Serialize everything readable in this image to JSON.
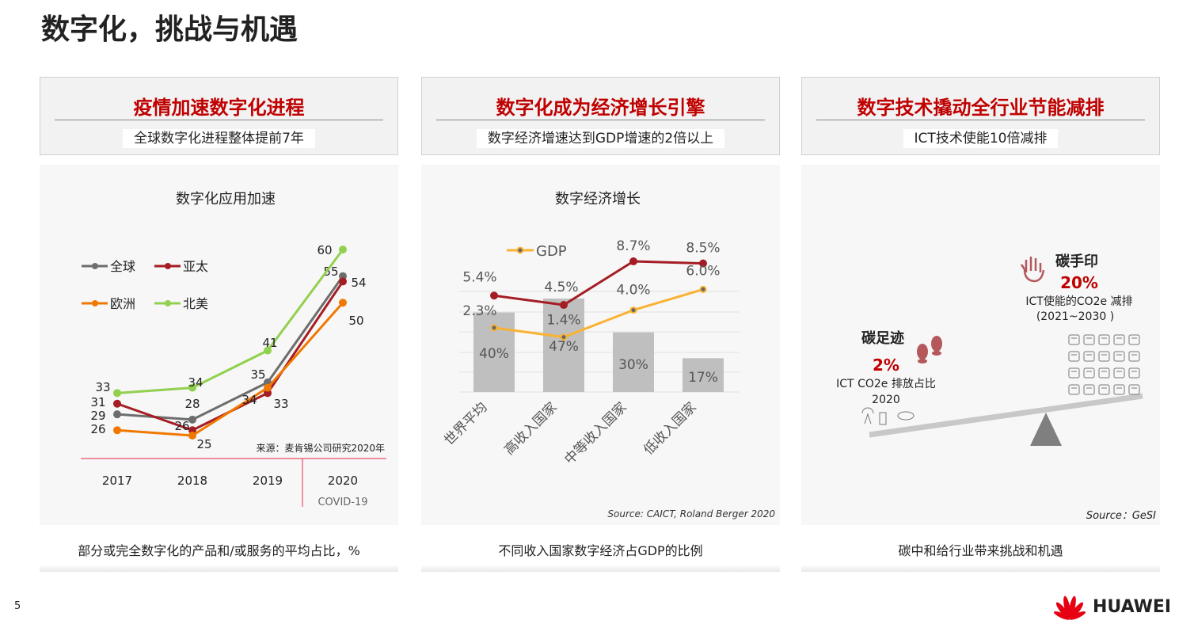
{
  "title": "数字化，挑战与机遇",
  "page_number": "5",
  "brand": "HUAWEI",
  "cards": [
    {
      "heading": "疫情加速数字化进程",
      "subheading": "全球数字化进程整体提前7年",
      "footer": "部分或完全数字化的产品和/或服务的平均占比，%"
    },
    {
      "heading": "数字化成为经济增长引擎",
      "subheading": "数字经济增速达到GDP增速的2倍以上",
      "footer": "不同收入国家数字经济占GDP的比例"
    },
    {
      "heading": "数字技术撬动全行业节能减排",
      "subheading": "ICT技术使能10倍减排",
      "footer": "碳中和给行业带来挑战和机遇"
    }
  ],
  "chart_data": [
    {
      "type": "line",
      "title": "数字化应用加速",
      "categories": [
        "2017",
        "2018",
        "2019",
        "2020"
      ],
      "series": [
        {
          "name": "全球",
          "color": "#6d6d6d",
          "values": [
            29,
            28,
            35,
            55
          ]
        },
        {
          "name": "亚太",
          "color": "#a51d24",
          "values": [
            31,
            26,
            33,
            54
          ]
        },
        {
          "name": "欧洲",
          "color": "#f07800",
          "values": [
            26,
            25,
            34,
            50
          ]
        },
        {
          "name": "北美",
          "color": "#92d050",
          "values": [
            33,
            34,
            41,
            60
          ]
        }
      ],
      "annotation": "COVID-19",
      "source": "来源：麦肯锡公司研究2020年"
    },
    {
      "type": "bar",
      "title": "数字经济增长",
      "categories": [
        "世界平均",
        "高收入国家",
        "中等收入国家",
        "低收入国家"
      ],
      "bars": {
        "name": "数字经济占GDP比例",
        "color": "#bfbfbf",
        "values": [
          40,
          47,
          30,
          17
        ],
        "labels": [
          "40%",
          "47%",
          "30%",
          "17%"
        ]
      },
      "series": [
        {
          "name": "数字经济增速",
          "color": "#a51d24",
          "values": [
            5.4,
            4.5,
            8.7,
            8.5
          ],
          "labels": [
            "5.4%",
            "4.5%",
            "8.7%",
            "8.5%"
          ]
        },
        {
          "name": "GDP",
          "color": "#f9b233",
          "values": [
            2.3,
            1.4,
            4.0,
            6.0
          ],
          "labels": [
            "2.3%",
            "1.4%",
            "4.0%",
            "6.0%"
          ]
        }
      ],
      "legend": "GDP",
      "source": "Source:  CAICT, Roland Berger 2020"
    }
  ],
  "balance": {
    "footprint": {
      "title": "碳足迹",
      "value": "2%",
      "desc": "ICT CO2e 排放占比",
      "year": "2020"
    },
    "handprint": {
      "title": "碳手印",
      "value": "20%",
      "desc": "ICT使能的CO2e 减排",
      "period": "(2021~2030 )"
    },
    "source": "Source：GeSI"
  }
}
